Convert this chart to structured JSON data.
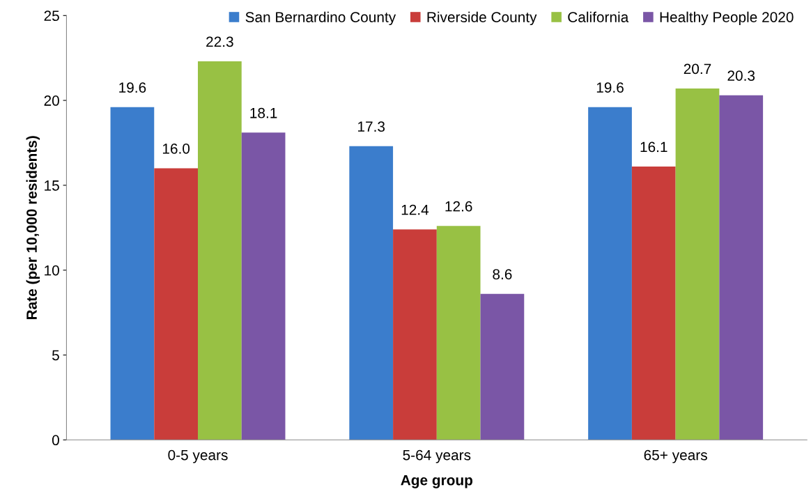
{
  "chart_data": {
    "type": "bar",
    "xlabel": "Age group",
    "ylabel": "Rate (per 10,000 residents)",
    "categories": [
      "0-5 years",
      "5-64 years",
      "65+ years"
    ],
    "series": [
      {
        "name": "San Bernardino County",
        "color": "#3b7dcc",
        "values": [
          19.6,
          17.3,
          19.6
        ],
        "value_labels": [
          "19.6",
          "17.3",
          "19.6"
        ]
      },
      {
        "name": "Riverside County",
        "color": "#c93d3a",
        "values": [
          16.0,
          12.4,
          16.1
        ],
        "value_labels": [
          "16.0",
          "12.4",
          "16.1"
        ]
      },
      {
        "name": "California",
        "color": "#98c144",
        "values": [
          22.3,
          12.6,
          20.7
        ],
        "value_labels": [
          "22.3",
          "12.6",
          "20.7"
        ]
      },
      {
        "name": "Healthy People 2020",
        "color": "#7a56a6",
        "values": [
          18.1,
          8.6,
          20.3
        ],
        "value_labels": [
          "18.1",
          "8.6",
          "20.3"
        ]
      }
    ],
    "ylim": [
      0,
      25
    ],
    "yticks": [
      0,
      5,
      10,
      15,
      20,
      25
    ],
    "grid": false,
    "legend": "top right"
  }
}
